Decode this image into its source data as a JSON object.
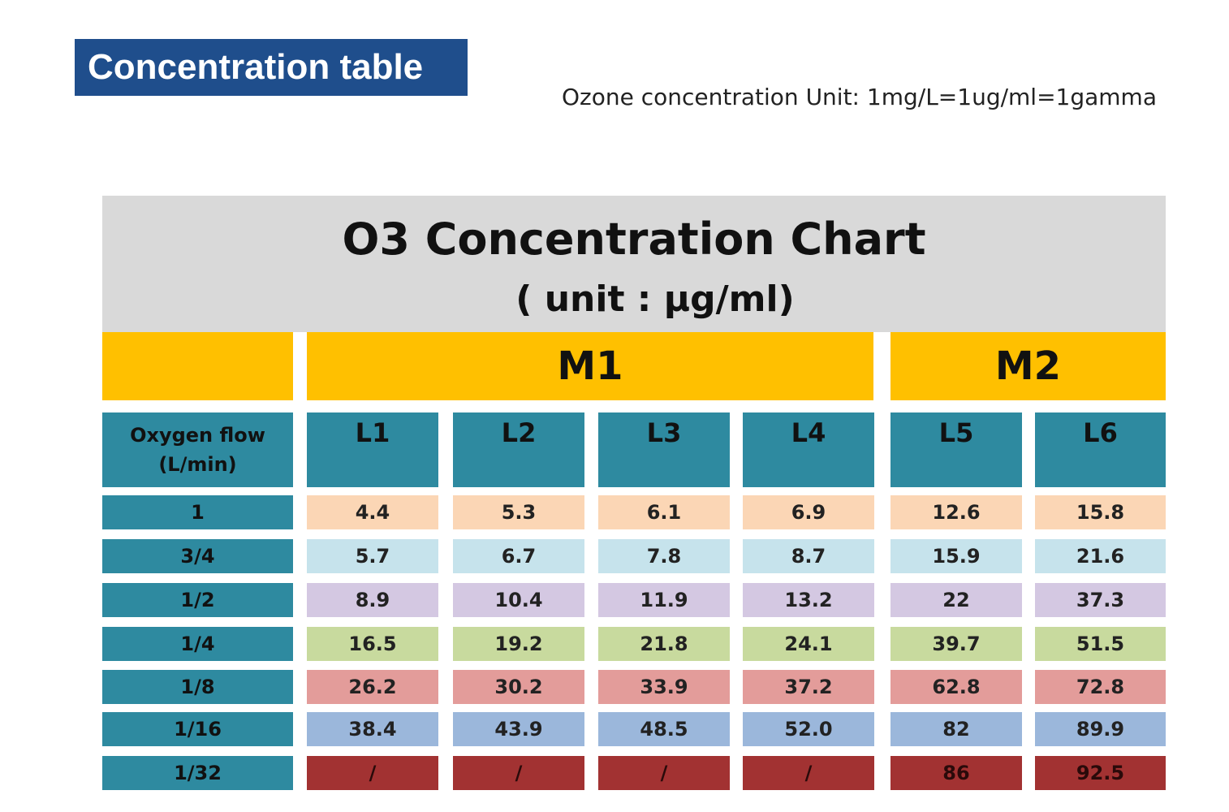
{
  "slide": {
    "title": "Concentration table",
    "unit_note": "Ozone concentration Unit: 1mg/L=1ug/ml=1gamma"
  },
  "chart_data": {
    "type": "table",
    "title": "O3 Concentration Chart",
    "subtitle": "( unit : μg/ml)",
    "groups": [
      {
        "name": "M1",
        "columns": [
          "L1",
          "L2",
          "L3",
          "L4"
        ]
      },
      {
        "name": "M2",
        "columns": [
          "L5",
          "L6"
        ]
      }
    ],
    "row_header_line1": "Oxygen flow",
    "row_header_line2": "(L/min)",
    "columns": [
      "L1",
      "L2",
      "L3",
      "L4",
      "L5",
      "L6"
    ],
    "rows": [
      {
        "flow": "1",
        "values": [
          "4.4",
          "5.3",
          "6.1",
          "6.9",
          "12.6",
          "15.8"
        ],
        "color": "#fbd6b5"
      },
      {
        "flow": "3/4",
        "values": [
          "5.7",
          "6.7",
          "7.8",
          "8.7",
          "15.9",
          "21.6"
        ],
        "color": "#c6e3ec"
      },
      {
        "flow": "1/2",
        "values": [
          "8.9",
          "10.4",
          "11.9",
          "13.2",
          "22",
          "37.3"
        ],
        "color": "#d4c8e2"
      },
      {
        "flow": "1/4",
        "values": [
          "16.5",
          "19.2",
          "21.8",
          "24.1",
          "39.7",
          "51.5"
        ],
        "color": "#c8da9e"
      },
      {
        "flow": "1/8",
        "values": [
          "26.2",
          "30.2",
          "33.9",
          "37.2",
          "62.8",
          "72.8"
        ],
        "color": "#e39c9a"
      },
      {
        "flow": "1/16",
        "values": [
          "38.4",
          "43.9",
          "48.5",
          "52.0",
          "82",
          "89.9"
        ],
        "color": "#9bb7db"
      },
      {
        "flow": "1/32",
        "values": [
          "/",
          "/",
          "/",
          "/",
          "86",
          "92.5"
        ],
        "color": "#a23232"
      }
    ]
  },
  "colors": {
    "title_bg": "#1f4e8c",
    "header_bg": "#d9d9d9",
    "group_bg": "#ffc000",
    "teal": "#2e8aa0"
  }
}
